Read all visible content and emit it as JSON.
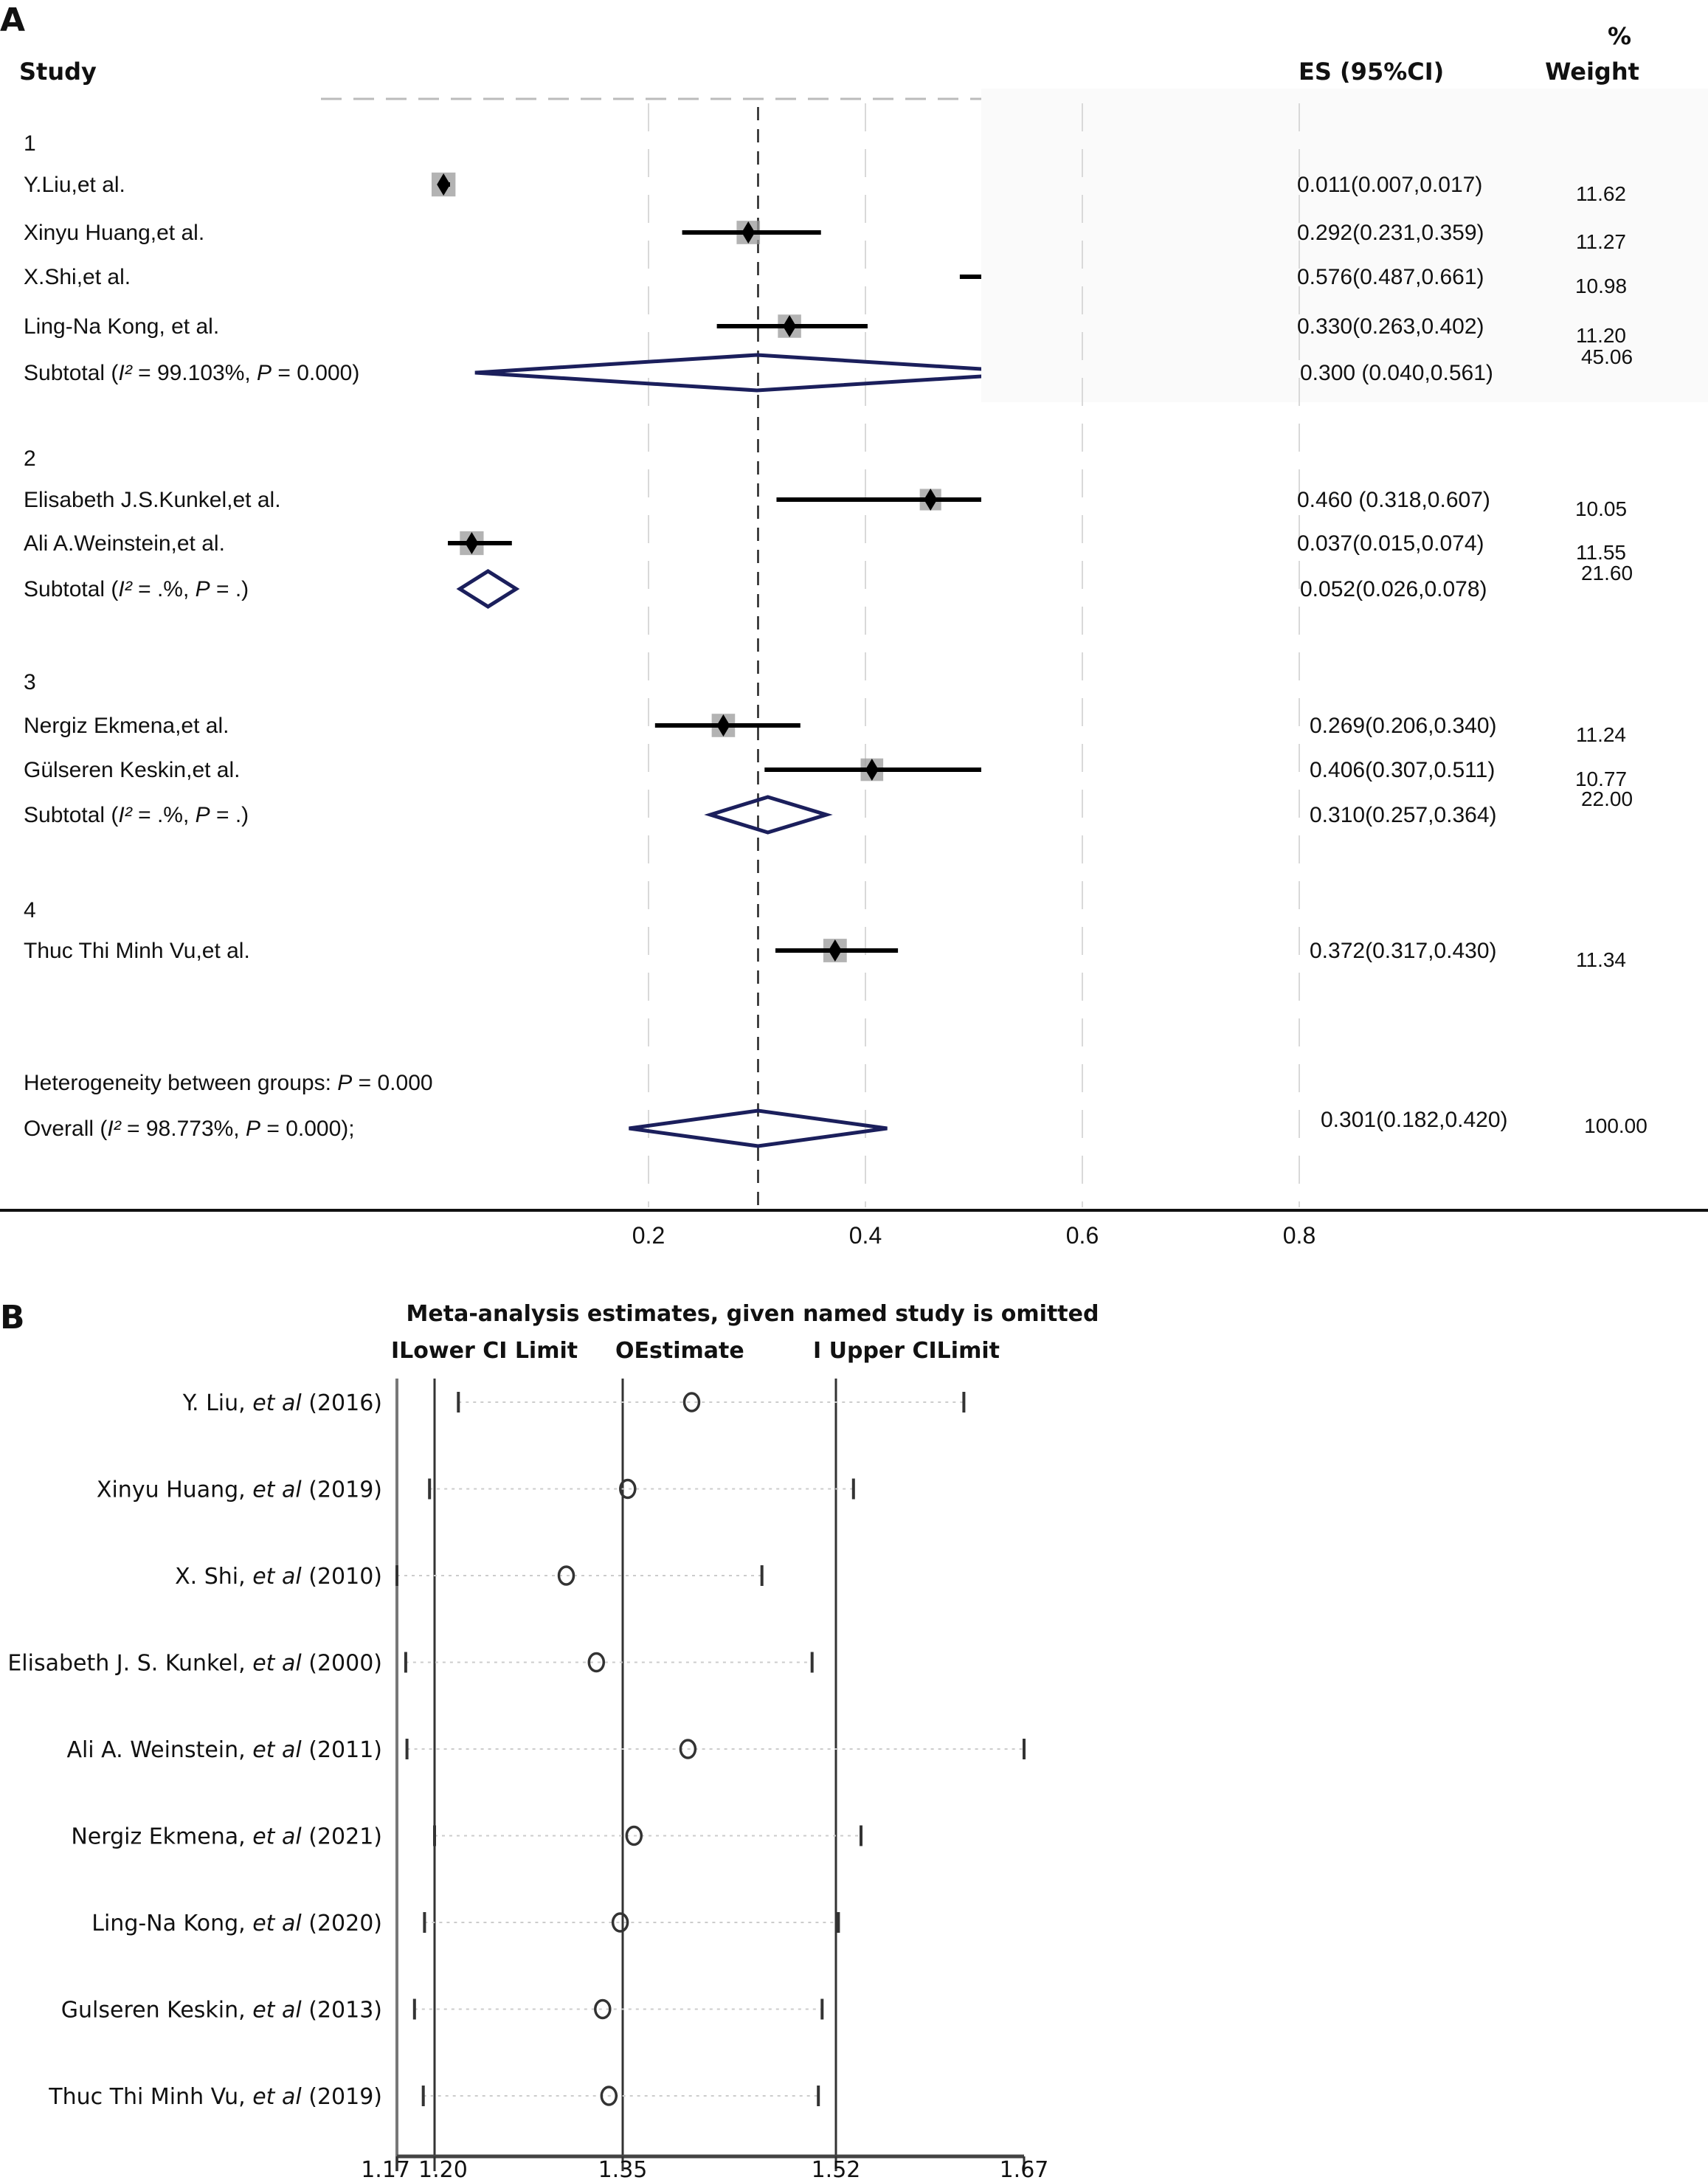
{
  "chart_data": [
    {
      "panel_label": "A",
      "type": "forest",
      "headers": {
        "study": "Study",
        "es": "ES (95%CI)",
        "weight_top": "%",
        "weight_bottom": "Weight"
      },
      "xaxis": {
        "ticks": [
          0.2,
          0.4,
          0.6,
          0.8
        ],
        "tick_labels": [
          "0.2",
          "0.4",
          "0.6",
          "0.8"
        ],
        "overall_line": 0.301
      },
      "groups": [
        {
          "label": "1",
          "studies": [
            {
              "name": "Y.Liu,et  al.",
              "es": 0.011,
              "lo": 0.007,
              "hi": 0.017,
              "es_text": "0.011(0.007,0.017)",
              "weight": "11.62"
            },
            {
              "name": "Xinyu  Huang,et  al.",
              "es": 0.292,
              "lo": 0.231,
              "hi": 0.359,
              "es_text": "0.292(0.231,0.359)",
              "weight": "11.27"
            },
            {
              "name": "X.Shi,et  al.",
              "es": 0.576,
              "lo": 0.487,
              "hi": 0.661,
              "es_text": "0.576(0.487,0.661)",
              "weight": "10.98"
            },
            {
              "name": "Ling-Na Kong, et  al.",
              "es": 0.33,
              "lo": 0.263,
              "hi": 0.402,
              "es_text": "0.330(0.263,0.402)",
              "weight": "11.20"
            }
          ],
          "subtotal": {
            "label_prefix": "Subtotal  (",
            "i2_symbol": "I²",
            "label_mid": " = 99.103%, ",
            "p_symbol": "P",
            "label_suffix": " = 0.000)",
            "es": 0.3,
            "lo": 0.04,
            "hi": 0.561,
            "es_text": "0.300  (0.040,0.561)",
            "weight": "45.06"
          }
        },
        {
          "label": "2",
          "studies": [
            {
              "name": "Elisabeth  J.S.Kunkel,et  al.",
              "es": 0.46,
              "lo": 0.318,
              "hi": 0.607,
              "es_text": "0.460 (0.318,0.607)",
              "weight": "10.05"
            },
            {
              "name": "Ali  A.Weinstein,et  al.",
              "es": 0.037,
              "lo": 0.015,
              "hi": 0.074,
              "es_text": "0.037(0.015,0.074)",
              "weight": "11.55"
            }
          ],
          "subtotal": {
            "label_prefix": "Subtotal  (",
            "i2_symbol": "I²",
            "label_mid": " = .%, ",
            "p_symbol": "P",
            "label_suffix": " = .)",
            "es": 0.052,
            "lo": 0.026,
            "hi": 0.078,
            "es_text": "0.052(0.026,0.078)",
            "weight": "21.60"
          }
        },
        {
          "label": "3",
          "studies": [
            {
              "name": "Nergiz  Ekmena,et  al.",
              "es": 0.269,
              "lo": 0.206,
              "hi": 0.34,
              "es_text": "0.269(0.206,0.340)",
              "weight": "11.24"
            },
            {
              "name": "Gülseren  Keskin,et  al.",
              "es": 0.406,
              "lo": 0.307,
              "hi": 0.511,
              "es_text": "0.406(0.307,0.511)",
              "weight": "10.77"
            }
          ],
          "subtotal": {
            "label_prefix": "Subtotal  (",
            "i2_symbol": "I²",
            "label_mid": " = .%, ",
            "p_symbol": "P",
            "label_suffix": " = .)",
            "es": 0.31,
            "lo": 0.257,
            "hi": 0.364,
            "es_text": "0.310(0.257,0.364)",
            "weight": "22.00"
          }
        },
        {
          "label": "4",
          "studies": [
            {
              "name": "Thuc  Thi  Minh  Vu,et  al.",
              "es": 0.372,
              "lo": 0.317,
              "hi": 0.43,
              "es_text": "0.372(0.317,0.430)",
              "weight": "11.34"
            }
          ]
        }
      ],
      "heterogeneity": {
        "prefix": "Heterogeneity between   groups: ",
        "p_symbol": "P",
        "suffix": " = 0.000"
      },
      "overall": {
        "label_prefix": "Overall  (",
        "i2_symbol": "I²",
        "label_mid": " = 98.773%, ",
        "p_symbol": "P",
        "label_suffix": " = 0.000);",
        "es": 0.301,
        "lo": 0.182,
        "hi": 0.42,
        "es_text": "0.301(0.182,0.420)",
        "weight": "100.00"
      },
      "colors": {
        "diamond": "#1b1f5c",
        "point": "#000000",
        "weight_box": "#9a9a9a",
        "gridline": "#d9d9d9"
      }
    },
    {
      "panel_label": "B",
      "type": "sensitivity",
      "title": "Meta-analysis estimates, given named study is omitted",
      "legend": {
        "lower": "ILower  CI  Limit",
        "estimate": "OEstimate",
        "upper": "I Upper CILimit"
      },
      "xaxis": {
        "min": 1.17,
        "max": 1.67,
        "ticks": [
          1.17,
          1.2,
          1.35,
          1.52,
          1.67
        ],
        "tick_labels": [
          "1.17",
          "1.20",
          "1.35",
          "1.52",
          "1.67"
        ],
        "reference_lines": [
          1.2,
          1.35,
          1.52
        ]
      },
      "studies": [
        {
          "name": "Y. Liu, ",
          "etal": "et al",
          "year": " (2016)",
          "lower": 1.219,
          "estimate": 1.405,
          "upper": 1.622
        },
        {
          "name": "Xinyu Huang, ",
          "etal": "et al",
          "year": " (2019)",
          "lower": 1.196,
          "estimate": 1.354,
          "upper": 1.534
        },
        {
          "name": "X. Shi, ",
          "etal": "et al",
          "year": " (2010)",
          "lower": 1.17,
          "estimate": 1.305,
          "upper": 1.461
        },
        {
          "name": "Elisabeth J. S. Kunkel, ",
          "etal": "et al",
          "year": " (2000)",
          "lower": 1.177,
          "estimate": 1.329,
          "upper": 1.501
        },
        {
          "name": "Ali A. Weinstein, ",
          "etal": "et al",
          "year": " (2011)",
          "lower": 1.178,
          "estimate": 1.402,
          "upper": 1.67
        },
        {
          "name": "Nergiz Ekmena, ",
          "etal": "et al",
          "year": " (2021)",
          "lower": 1.2,
          "estimate": 1.359,
          "upper": 1.54
        },
        {
          "name": "Ling-Na Kong, ",
          "etal": "et al",
          "year": " (2020)",
          "lower": 1.192,
          "estimate": 1.348,
          "upper": 1.522
        },
        {
          "name": "Gulseren Keskin, ",
          "etal": "et al",
          "year": " (2013)",
          "lower": 1.184,
          "estimate": 1.334,
          "upper": 1.509
        },
        {
          "name": "Thuc Thi Minh Vu, ",
          "etal": "et al",
          "year": " (2019)",
          "lower": 1.191,
          "estimate": 1.339,
          "upper": 1.506
        }
      ]
    }
  ]
}
